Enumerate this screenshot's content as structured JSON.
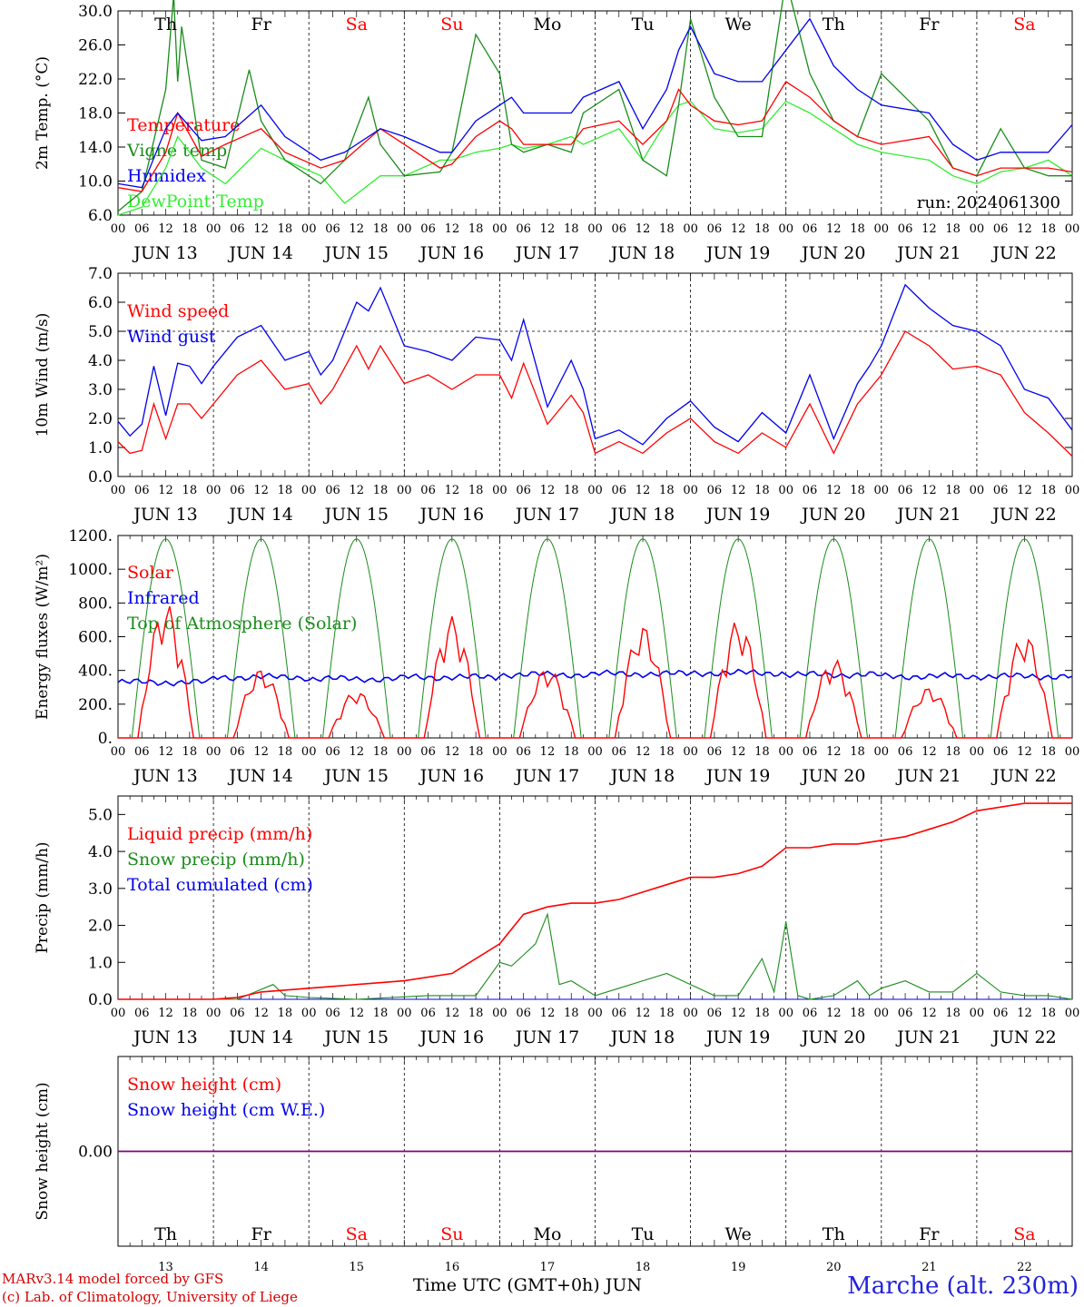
{
  "run_label": "run: 2024061300",
  "days": {
    "names": [
      "Th",
      "Fr",
      "Sa",
      "Su",
      "Mo",
      "Tu",
      "We",
      "Th",
      "Fr",
      "Sa"
    ],
    "weekend": [
      false,
      false,
      true,
      true,
      false,
      false,
      false,
      false,
      false,
      true
    ],
    "dates": [
      "JUN 13",
      "JUN 14",
      "JUN 15",
      "JUN 16",
      "JUN 17",
      "JUN 18",
      "JUN 19",
      "JUN 20",
      "JUN 21",
      "JUN 22"
    ],
    "bottom_numbers": [
      "13",
      "14",
      "15",
      "16",
      "17",
      "18",
      "19",
      "20",
      "21",
      "22"
    ]
  },
  "hour_labels": [
    "00",
    "06",
    "12",
    "18"
  ],
  "last_hour_label": "00",
  "colors": {
    "red": "#ff0000",
    "green": "#1a8c1a",
    "blue": "#0000ee",
    "lightgreen": "#33ee33",
    "purple": "#800080"
  },
  "footer": {
    "credit_line1": "MARv3.14 model forced by GFS",
    "credit_line2": "(c) Lab. of Climatology, University of Liege",
    "x_title": "Time UTC (GMT+0h) JUN",
    "station": "Marche (alt. 230m)"
  },
  "chart_data": [
    {
      "type": "line",
      "ylabel": "2m Temp. (°C)",
      "ylim": [
        6,
        32
      ],
      "yticks": [
        "6.0",
        "10.0",
        "14.0",
        "18.0",
        "22.0",
        "26.0",
        "30.0"
      ],
      "x_unit": "hours since JUN 13 00 UTC",
      "legend": [
        "Temperature",
        "Vigne temp",
        "Humidex",
        "DewPoint Temp"
      ],
      "series": [
        {
          "name": "Temperature",
          "color": "red",
          "x": [
            0,
            6,
            12,
            15,
            21,
            27,
            36,
            42,
            51,
            57,
            66,
            72,
            81,
            84,
            90,
            96,
            99,
            102,
            108,
            114,
            117,
            126,
            132,
            138,
            141,
            144,
            150,
            156,
            162,
            168,
            174,
            180,
            186,
            192,
            204,
            210,
            216,
            222,
            228,
            234,
            240
          ],
          "y": [
            9.5,
            9,
            14,
            19,
            13.5,
            15,
            17,
            14,
            12,
            13,
            17,
            15,
            12,
            12.5,
            16,
            18,
            17,
            15,
            15,
            15,
            17,
            18,
            15,
            18,
            22,
            20,
            18,
            17.5,
            18,
            23,
            21,
            18,
            16,
            15,
            16,
            12,
            11,
            12,
            12,
            12,
            11.5
          ]
        },
        {
          "name": "Vigne temp",
          "color": "green",
          "x": [
            0,
            6,
            12,
            14,
            15,
            16,
            21,
            27,
            33,
            36,
            42,
            51,
            57,
            63,
            66,
            72,
            81,
            84,
            90,
            96,
            99,
            102,
            108,
            114,
            117,
            126,
            132,
            138,
            141,
            144,
            150,
            156,
            162,
            168,
            174,
            180,
            186,
            192,
            204,
            210,
            216,
            222,
            228,
            234,
            240
          ],
          "y": [
            6.5,
            9,
            22,
            34,
            23,
            30,
            13,
            12,
            24.5,
            18,
            13,
            10,
            13,
            21,
            15,
            11,
            11.5,
            14,
            29,
            24,
            15,
            14,
            15,
            14,
            19,
            22,
            13,
            11,
            20,
            31,
            21,
            16,
            16,
            36,
            24,
            18,
            16,
            24,
            18,
            12,
            11,
            17,
            12,
            11,
            11
          ]
        },
        {
          "name": "Humidex",
          "color": "blue",
          "x": [
            0,
            6,
            12,
            15,
            21,
            27,
            36,
            42,
            51,
            57,
            66,
            72,
            81,
            84,
            90,
            96,
            99,
            102,
            108,
            114,
            117,
            126,
            132,
            138,
            141,
            144,
            150,
            156,
            162,
            168,
            174,
            180,
            186,
            192,
            204,
            210,
            216,
            222,
            228,
            234,
            240
          ],
          "y": [
            10,
            9.5,
            17,
            19,
            15.5,
            16,
            20,
            16,
            13,
            14,
            17,
            16,
            14,
            14,
            18,
            20,
            21,
            19,
            19,
            19,
            21,
            23,
            17,
            22,
            27,
            30,
            24,
            23,
            23,
            27,
            31,
            25,
            22,
            20,
            19,
            15,
            13,
            14,
            14,
            14,
            17.5
          ]
        },
        {
          "name": "DewPoint Temp",
          "color": "lightgreen",
          "x": [
            0,
            6,
            12,
            15,
            21,
            27,
            36,
            42,
            51,
            57,
            66,
            72,
            81,
            84,
            90,
            96,
            99,
            102,
            108,
            114,
            117,
            126,
            132,
            138,
            141,
            144,
            150,
            156,
            162,
            168,
            174,
            180,
            186,
            192,
            204,
            210,
            216,
            222,
            228,
            234,
            240
          ],
          "y": [
            6,
            7,
            12,
            16,
            12,
            10,
            14.5,
            13,
            11,
            7.5,
            11,
            11,
            13,
            13,
            14,
            14.5,
            15,
            14.5,
            15,
            16,
            15,
            17,
            13,
            18,
            20,
            20.5,
            17,
            16.5,
            17,
            20.5,
            19,
            17,
            15,
            14,
            13,
            11,
            10,
            11.5,
            12,
            13,
            11
          ]
        }
      ]
    },
    {
      "type": "line",
      "ylabel": "10m Wind (m/s)",
      "ylim": [
        0,
        7
      ],
      "yticks": [
        "0.0",
        "1.0",
        "2.0",
        "3.0",
        "4.0",
        "5.0",
        "6.0",
        "7.0"
      ],
      "reference_line": 5,
      "legend": [
        "Wind speed",
        "Wind gust"
      ],
      "series": [
        {
          "name": "Wind speed",
          "color": "red",
          "x": [
            0,
            3,
            6,
            9,
            12,
            15,
            18,
            21,
            24,
            30,
            36,
            42,
            48,
            51,
            54,
            60,
            63,
            66,
            72,
            78,
            84,
            90,
            96,
            99,
            102,
            108,
            114,
            117,
            120,
            126,
            132,
            138,
            144,
            150,
            156,
            162,
            168,
            174,
            180,
            186,
            189,
            192,
            198,
            204,
            210,
            216,
            222,
            228,
            234,
            240
          ],
          "y": [
            1.2,
            0.8,
            0.9,
            2.5,
            1.3,
            2.5,
            2.5,
            2,
            2.5,
            3.5,
            4,
            3,
            3.2,
            2.5,
            3,
            4.5,
            3.7,
            4.5,
            3.2,
            3.5,
            3,
            3.5,
            3.5,
            2.7,
            3.9,
            1.8,
            2.8,
            2.2,
            0.8,
            1.2,
            0.8,
            1.5,
            2,
            1.2,
            0.8,
            1.5,
            1,
            2.5,
            0.8,
            2.5,
            3,
            3.5,
            5,
            4.5,
            3.7,
            3.8,
            3.5,
            2.2,
            1.5,
            0.7
          ]
        },
        {
          "name": "Wind gust",
          "color": "blue",
          "x": [
            0,
            3,
            6,
            9,
            12,
            15,
            18,
            21,
            24,
            30,
            36,
            42,
            48,
            51,
            54,
            60,
            63,
            66,
            72,
            78,
            84,
            90,
            96,
            99,
            102,
            108,
            114,
            117,
            120,
            126,
            132,
            138,
            144,
            150,
            156,
            162,
            168,
            174,
            180,
            186,
            189,
            192,
            198,
            204,
            210,
            216,
            222,
            228,
            234,
            240
          ],
          "y": [
            1.9,
            1.4,
            1.8,
            3.8,
            2.1,
            3.9,
            3.8,
            3.2,
            3.8,
            4.8,
            5.2,
            4,
            4.3,
            3.5,
            4,
            6,
            5.7,
            6.5,
            4.5,
            4.3,
            4,
            4.8,
            4.7,
            4,
            5.4,
            2.4,
            4,
            3,
            1.3,
            1.6,
            1.1,
            2,
            2.6,
            1.7,
            1.2,
            2.2,
            1.5,
            3.5,
            1.3,
            3.2,
            3.8,
            4.5,
            6.6,
            5.8,
            5.2,
            5,
            4.5,
            3,
            2.7,
            1.6
          ]
        }
      ]
    },
    {
      "type": "line",
      "ylabel": "Energy fluxes (W/m²)",
      "ylim": [
        0,
        1200
      ],
      "yticks": [
        "0.",
        "200.",
        "400.",
        "600.",
        "800.",
        "1000.",
        "1200."
      ],
      "legend": [
        "Solar",
        "Infrared",
        "Top of Atmosphere (Solar)"
      ],
      "series": [
        {
          "name": "Solar",
          "color": "red",
          "peaks": [
            800,
            410,
            280,
            720,
            420,
            670,
            700,
            470,
            300,
            620
          ]
        },
        {
          "name": "Infrared",
          "color": "blue",
          "baseline": [
            330,
            360,
            350,
            360,
            375,
            380,
            385,
            375,
            365,
            365
          ]
        },
        {
          "name": "Top of Atmosphere (Solar)",
          "color": "green",
          "peak": 1180
        }
      ]
    },
    {
      "type": "line",
      "ylabel": "Precip (mm/h)",
      "ylim": [
        0,
        5.5
      ],
      "yticks": [
        "0.0",
        "1.0",
        "2.0",
        "3.0",
        "4.0",
        "5.0"
      ],
      "legend": [
        "Liquid precip (mm/h)",
        "Snow precip (mm/h)",
        "Total cumulated (cm)"
      ],
      "series": [
        {
          "name": "Total cumulated (cm)",
          "color": "red",
          "x": [
            0,
            24,
            30,
            36,
            48,
            60,
            72,
            84,
            96,
            102,
            108,
            114,
            120,
            126,
            132,
            138,
            144,
            150,
            156,
            162,
            168,
            174,
            180,
            186,
            192,
            198,
            204,
            210,
            216,
            222,
            228,
            234,
            240
          ],
          "y": [
            0,
            0,
            0.05,
            0.2,
            0.3,
            0.4,
            0.5,
            0.7,
            1.5,
            2.3,
            2.5,
            2.6,
            2.6,
            2.7,
            2.9,
            3.1,
            3.3,
            3.3,
            3.4,
            3.6,
            4.1,
            4.1,
            4.2,
            4.2,
            4.3,
            4.4,
            4.6,
            4.8,
            5.1,
            5.2,
            5.3,
            5.3,
            5.3
          ]
        },
        {
          "name": "Liquid precip (mm/h)",
          "color": "green",
          "x": [
            0,
            30,
            39,
            42,
            48,
            60,
            78,
            90,
            96,
            99,
            102,
            105,
            108,
            111,
            114,
            117,
            120,
            126,
            132,
            138,
            144,
            150,
            156,
            162,
            165,
            168,
            171,
            174,
            180,
            186,
            189,
            192,
            198,
            204,
            210,
            216,
            222,
            228,
            234,
            240
          ],
          "y": [
            0,
            0,
            0.4,
            0.1,
            0.05,
            0,
            0.1,
            0.1,
            1,
            0.9,
            1.2,
            1.5,
            2.3,
            0.4,
            0.5,
            0.3,
            0.1,
            0.3,
            0.5,
            0.7,
            0.4,
            0.1,
            0.1,
            1.1,
            0.2,
            2.1,
            0.1,
            0,
            0.1,
            0.5,
            0.1,
            0.3,
            0.5,
            0.2,
            0.2,
            0.7,
            0.2,
            0.1,
            0.1,
            0
          ]
        },
        {
          "name": "Snow precip (mm/h)",
          "color": "blue",
          "x": [
            0,
            240
          ],
          "y": [
            0,
            0
          ]
        }
      ]
    },
    {
      "type": "line",
      "ylabel": "Snow height (cm)",
      "yticks": [
        "0.00"
      ],
      "legend": [
        "Snow height (cm)",
        "Snow height (cm W.E.)"
      ],
      "series": [
        {
          "name": "Snow height (cm)",
          "color": "red",
          "x": [
            0,
            240
          ],
          "y": [
            0,
            0
          ]
        },
        {
          "name": "Snow height (cm W.E.)",
          "color": "blue",
          "x": [
            0,
            240
          ],
          "y": [
            0,
            0
          ]
        }
      ]
    }
  ]
}
